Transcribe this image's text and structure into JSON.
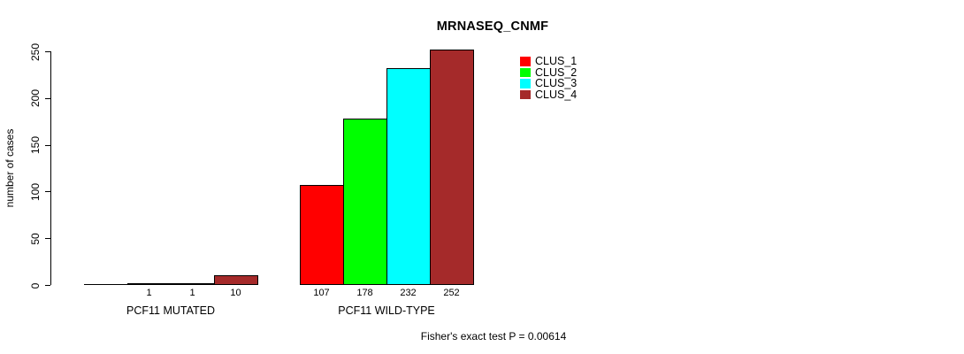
{
  "chart_data": {
    "type": "bar",
    "title": "MRNASEQ_CNMF",
    "xlabel": "",
    "ylabel": "number of cases",
    "ylim": [
      0,
      250
    ],
    "yticks": [
      0,
      50,
      100,
      150,
      200,
      250
    ],
    "grid": false,
    "legend_position": "top-right",
    "series": [
      {
        "name": "CLUS_1",
        "color": "#FF0000"
      },
      {
        "name": "CLUS_2",
        "color": "#00FF00"
      },
      {
        "name": "CLUS_3",
        "color": "#00FFFF"
      },
      {
        "name": "CLUS_4",
        "color": "#A52A2A"
      }
    ],
    "groups": [
      {
        "label": "PCF11 MUTATED",
        "values": [
          0,
          1,
          1,
          10
        ],
        "bar_labels": [
          "",
          "1",
          "1",
          "10"
        ]
      },
      {
        "label": "PCF11 WILD-TYPE",
        "values": [
          107,
          178,
          232,
          252
        ],
        "bar_labels": [
          "107",
          "178",
          "232",
          "252"
        ]
      }
    ],
    "annotation": "Fisher's exact test P = 0.00614",
    "bar_border_color": "#000000",
    "axis_color": "#000000"
  }
}
